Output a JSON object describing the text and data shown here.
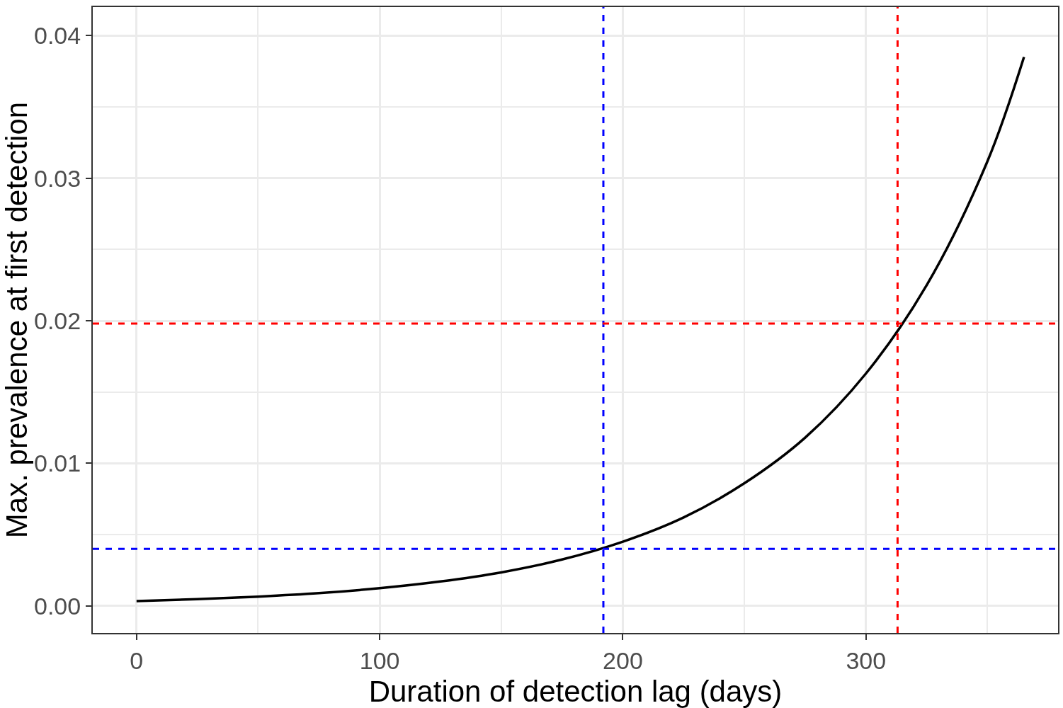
{
  "chart_data": {
    "type": "line",
    "xlabel": "Duration of detection lag (days)",
    "ylabel": "Max. prevalence at first detection",
    "x": [
      0,
      25,
      50,
      75,
      100,
      125,
      150,
      175,
      200,
      225,
      250,
      275,
      300,
      325,
      350,
      365
    ],
    "series": [
      {
        "color": "#000000",
        "values": [
          0.00034,
          0.00047,
          0.00065,
          0.00089,
          0.00124,
          0.00171,
          0.00235,
          0.00325,
          0.0045,
          0.0062,
          0.0086,
          0.0118,
          0.0163,
          0.0225,
          0.0312,
          0.0385
        ]
      }
    ],
    "xlim": [
      -18,
      379
    ],
    "ylim": [
      -0.0019,
      0.042
    ],
    "xticks": [
      0,
      {
        "value": 50,
        "label": null
      },
      100,
      {
        "value": 150,
        "label": null
      },
      200,
      {
        "value": 250,
        "label": null
      },
      300,
      {
        "value": 350,
        "label": null
      }
    ],
    "yticks": [
      {
        "value": 0,
        "label": "0.00"
      },
      {
        "value": 0.005,
        "label": null
      },
      0.01,
      {
        "value": 0.015,
        "label": null
      },
      {
        "value": 0.02,
        "label": "0.02"
      },
      {
        "value": 0.025,
        "label": null
      },
      0.03,
      {
        "value": 0.035,
        "label": null
      },
      0.04
    ],
    "ref_lines": [
      {
        "axis": "x",
        "value": 192,
        "color": "#0000ff",
        "line_style": "dashed"
      },
      {
        "axis": "x",
        "value": 313,
        "color": "#ff0000",
        "line_style": "dashed"
      },
      {
        "axis": "y",
        "value": 0.004,
        "color": "#0000ff",
        "line_style": "dashed"
      },
      {
        "axis": "y",
        "value": 0.0198,
        "color": "#ff0000",
        "line_style": "dashed"
      }
    ],
    "grid": true,
    "line_style": "solid",
    "marker": "none"
  }
}
